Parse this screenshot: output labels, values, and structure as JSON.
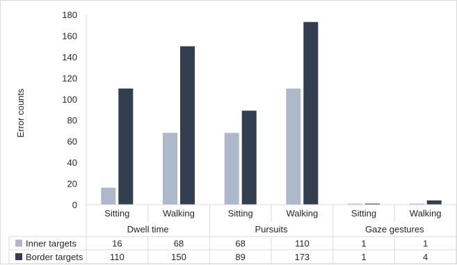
{
  "chart_data": {
    "type": "bar",
    "ylabel": "Error counts",
    "ylim": [
      0,
      180
    ],
    "ytick_step": 20,
    "groups": [
      {
        "name": "Dwell time",
        "categories": [
          "Sitting",
          "Walking"
        ]
      },
      {
        "name": "Pursuits",
        "categories": [
          "Sitting",
          "Walking"
        ]
      },
      {
        "name": "Gaze gestures",
        "categories": [
          "Sitting",
          "Walking"
        ]
      }
    ],
    "categories": [
      "Sitting",
      "Walking",
      "Sitting",
      "Walking",
      "Sitting",
      "Walking"
    ],
    "series": [
      {
        "name": "Inner targets",
        "color": "#adb9ca",
        "values": [
          16,
          68,
          68,
          110,
          1,
          1
        ]
      },
      {
        "name": "Border targets",
        "color": "#333f50",
        "values": [
          110,
          150,
          89,
          173,
          1,
          4
        ]
      }
    ],
    "grid": false,
    "legend": "data-table"
  }
}
